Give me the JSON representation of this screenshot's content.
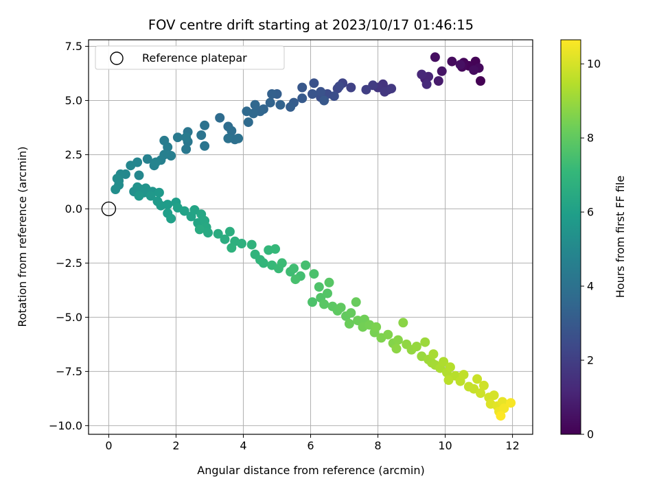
{
  "chart_data": {
    "type": "scatter",
    "title": "FOV centre drift starting at 2023/10/17 01:46:15",
    "xlabel": "Angular distance from reference (arcmin)",
    "ylabel": "Rotation from reference (arcmin)",
    "xlim": [
      -0.6,
      12.6
    ],
    "ylim": [
      -10.4,
      7.8
    ],
    "x_ticks": [
      0,
      2,
      4,
      6,
      8,
      10,
      12
    ],
    "x_tick_labels": [
      "0",
      "2",
      "4",
      "6",
      "8",
      "10",
      "12"
    ],
    "y_ticks": [
      -10.0,
      -7.5,
      -5.0,
      -2.5,
      0.0,
      2.5,
      5.0,
      7.5
    ],
    "y_tick_labels": [
      "−10.0",
      "−7.5",
      "−5.0",
      "−2.5",
      "0.0",
      "2.5",
      "5.0",
      "7.5"
    ],
    "grid": true,
    "legend": {
      "placement": "top-left",
      "entries": [
        "Reference platepar"
      ]
    },
    "reference_point": {
      "x": 0.0,
      "y": 0.0
    },
    "colorbar": {
      "label": "Hours from first FF file",
      "colormap": "viridis",
      "range": [
        0,
        10.65
      ],
      "ticks": [
        0,
        2,
        4,
        6,
        8,
        10
      ],
      "tick_labels": [
        "0",
        "2",
        "4",
        "6",
        "8",
        "10"
      ]
    },
    "color_stops": [
      "#440154",
      "#482878",
      "#3e4989",
      "#31688e",
      "#26828e",
      "#1f9e89",
      "#35b779",
      "#6ece58",
      "#b5de2b",
      "#fde725"
    ],
    "series": [
      {
        "points": [
          [
            11.05,
            5.9,
            0.0
          ],
          [
            10.9,
            6.8,
            0.05
          ],
          [
            10.7,
            6.6,
            0.1
          ],
          [
            10.55,
            6.75,
            0.15
          ],
          [
            10.5,
            6.55,
            0.2
          ],
          [
            11.0,
            6.5,
            0.25
          ],
          [
            10.2,
            6.8,
            0.3
          ],
          [
            10.85,
            6.4,
            0.35
          ],
          [
            9.7,
            7.0,
            0.4
          ],
          [
            10.45,
            6.65,
            0.45
          ],
          [
            9.9,
            6.35,
            0.6
          ],
          [
            9.8,
            5.9,
            0.8
          ],
          [
            9.4,
            6.0,
            1.0
          ],
          [
            9.5,
            6.1,
            1.1
          ],
          [
            9.3,
            6.2,
            1.2
          ],
          [
            9.45,
            5.75,
            1.3
          ],
          [
            8.3,
            5.5,
            1.5
          ],
          [
            8.15,
            5.75,
            1.6
          ],
          [
            8.0,
            5.6,
            1.7
          ],
          [
            8.2,
            5.4,
            1.75
          ],
          [
            8.4,
            5.55,
            1.8
          ],
          [
            7.85,
            5.7,
            1.9
          ],
          [
            7.65,
            5.5,
            2.0
          ],
          [
            7.2,
            5.6,
            2.1
          ],
          [
            6.95,
            5.8,
            2.2
          ],
          [
            6.8,
            5.55,
            2.3
          ],
          [
            6.85,
            5.65,
            2.4
          ],
          [
            6.5,
            5.3,
            2.5
          ],
          [
            6.7,
            5.2,
            2.55
          ],
          [
            6.3,
            5.15,
            2.6
          ],
          [
            6.1,
            5.8,
            2.7
          ],
          [
            6.3,
            5.4,
            2.75
          ],
          [
            6.05,
            5.3,
            2.8
          ],
          [
            5.75,
            5.6,
            2.9
          ],
          [
            6.4,
            5.0,
            2.95
          ],
          [
            5.75,
            5.1,
            3.0
          ],
          [
            5.5,
            4.9,
            3.1
          ],
          [
            5.4,
            4.7,
            3.15
          ],
          [
            5.0,
            5.3,
            3.2
          ],
          [
            4.85,
            5.3,
            3.3
          ],
          [
            5.1,
            4.8,
            3.35
          ],
          [
            4.8,
            4.9,
            3.4
          ],
          [
            4.6,
            4.6,
            3.45
          ],
          [
            4.5,
            4.5,
            3.5
          ],
          [
            4.35,
            4.8,
            3.55
          ],
          [
            4.3,
            4.4,
            3.6
          ],
          [
            4.1,
            4.5,
            3.65
          ],
          [
            4.15,
            4.0,
            3.7
          ],
          [
            3.3,
            4.2,
            3.75
          ],
          [
            3.55,
            3.8,
            3.8
          ],
          [
            3.65,
            3.6,
            3.85
          ],
          [
            3.75,
            3.2,
            3.9
          ],
          [
            3.85,
            3.25,
            3.95
          ],
          [
            3.55,
            3.25,
            4.0
          ],
          [
            2.85,
            3.85,
            4.05
          ],
          [
            2.75,
            3.4,
            4.1
          ],
          [
            2.85,
            2.9,
            4.15
          ],
          [
            2.35,
            3.55,
            4.2
          ],
          [
            2.35,
            3.1,
            4.25
          ],
          [
            2.3,
            2.75,
            4.3
          ],
          [
            2.05,
            3.3,
            4.35
          ],
          [
            2.3,
            3.3,
            4.4
          ],
          [
            1.65,
            3.15,
            4.45
          ],
          [
            1.75,
            2.85,
            4.5
          ],
          [
            1.85,
            2.45,
            4.55
          ],
          [
            1.65,
            2.5,
            4.6
          ],
          [
            1.55,
            2.25,
            4.65
          ],
          [
            1.15,
            2.3,
            4.7
          ],
          [
            1.35,
            2.0,
            4.75
          ],
          [
            1.4,
            2.15,
            4.8
          ],
          [
            0.85,
            2.15,
            4.85
          ],
          [
            0.65,
            2.0,
            4.9
          ],
          [
            0.9,
            1.55,
            4.95
          ],
          [
            0.5,
            1.6,
            5.0
          ],
          [
            0.35,
            1.6,
            5.05
          ],
          [
            0.3,
            1.3,
            5.1
          ],
          [
            0.25,
            1.4,
            5.15
          ],
          [
            0.3,
            1.1,
            5.2
          ],
          [
            0.2,
            0.9,
            5.25
          ],
          [
            0.75,
            0.8,
            5.3
          ],
          [
            0.95,
            0.9,
            5.35
          ],
          [
            0.85,
            1.0,
            5.4
          ],
          [
            1.1,
            0.95,
            5.45
          ],
          [
            1.05,
            0.75,
            5.5
          ],
          [
            1.3,
            0.8,
            5.55
          ],
          [
            0.9,
            0.6,
            5.6
          ],
          [
            1.25,
            0.6,
            5.65
          ],
          [
            1.5,
            0.75,
            5.7
          ],
          [
            1.45,
            0.35,
            5.75
          ],
          [
            1.55,
            0.15,
            5.8
          ],
          [
            1.75,
            0.2,
            5.85
          ],
          [
            2.0,
            0.3,
            5.9
          ],
          [
            1.75,
            -0.2,
            5.95
          ],
          [
            1.85,
            -0.45,
            6.0
          ],
          [
            2.05,
            0.05,
            6.05
          ],
          [
            2.25,
            -0.1,
            6.1
          ],
          [
            2.45,
            -0.35,
            6.15
          ],
          [
            2.55,
            -0.05,
            6.2
          ],
          [
            2.65,
            -0.65,
            6.25
          ],
          [
            2.75,
            -0.25,
            6.3
          ],
          [
            2.85,
            -0.55,
            6.35
          ],
          [
            2.9,
            -0.85,
            6.4
          ],
          [
            2.95,
            -1.1,
            6.45
          ],
          [
            2.7,
            -0.95,
            6.5
          ],
          [
            3.25,
            -1.15,
            6.55
          ],
          [
            3.45,
            -1.4,
            6.6
          ],
          [
            3.6,
            -1.05,
            6.65
          ],
          [
            3.75,
            -1.5,
            6.7
          ],
          [
            3.95,
            -1.6,
            6.75
          ],
          [
            3.65,
            -1.8,
            6.8
          ],
          [
            4.25,
            -1.65,
            6.85
          ],
          [
            4.35,
            -2.1,
            6.9
          ],
          [
            4.5,
            -2.35,
            6.95
          ],
          [
            4.6,
            -2.5,
            7.0
          ],
          [
            4.75,
            -1.9,
            7.05
          ],
          [
            4.95,
            -1.85,
            7.1
          ],
          [
            4.85,
            -2.6,
            7.15
          ],
          [
            5.05,
            -2.75,
            7.2
          ],
          [
            5.15,
            -2.5,
            7.25
          ],
          [
            5.4,
            -2.9,
            7.3
          ],
          [
            5.5,
            -2.75,
            7.35
          ],
          [
            5.7,
            -3.1,
            7.4
          ],
          [
            5.85,
            -2.6,
            7.45
          ],
          [
            5.55,
            -3.25,
            7.5
          ],
          [
            6.1,
            -3.0,
            7.55
          ],
          [
            6.05,
            -4.3,
            7.6
          ],
          [
            6.25,
            -3.6,
            7.65
          ],
          [
            6.3,
            -4.1,
            7.7
          ],
          [
            6.5,
            -3.9,
            7.75
          ],
          [
            6.55,
            -3.4,
            7.8
          ],
          [
            6.4,
            -4.4,
            7.85
          ],
          [
            6.65,
            -4.5,
            7.9
          ],
          [
            6.8,
            -4.7,
            7.95
          ],
          [
            6.9,
            -4.55,
            8.0
          ],
          [
            7.05,
            -4.95,
            8.05
          ],
          [
            7.2,
            -4.8,
            8.1
          ],
          [
            7.35,
            -4.3,
            8.15
          ],
          [
            7.15,
            -5.3,
            8.2
          ],
          [
            7.4,
            -5.15,
            8.25
          ],
          [
            7.6,
            -5.1,
            8.3
          ],
          [
            7.55,
            -5.45,
            8.35
          ],
          [
            7.75,
            -5.35,
            8.4
          ],
          [
            7.9,
            -5.7,
            8.45
          ],
          [
            7.95,
            -5.45,
            8.5
          ],
          [
            8.1,
            -5.95,
            8.55
          ],
          [
            8.3,
            -5.8,
            8.6
          ],
          [
            8.45,
            -6.2,
            8.65
          ],
          [
            8.6,
            -6.05,
            8.7
          ],
          [
            8.75,
            -5.25,
            8.75
          ],
          [
            8.55,
            -6.45,
            8.8
          ],
          [
            8.85,
            -6.25,
            8.85
          ],
          [
            9.0,
            -6.5,
            8.9
          ],
          [
            9.15,
            -6.35,
            8.95
          ],
          [
            9.3,
            -6.8,
            9.0
          ],
          [
            9.4,
            -6.15,
            9.05
          ],
          [
            9.5,
            -6.95,
            9.1
          ],
          [
            9.6,
            -7.1,
            9.15
          ],
          [
            9.7,
            -7.2,
            9.2
          ],
          [
            9.65,
            -6.7,
            9.25
          ],
          [
            9.85,
            -7.35,
            9.3
          ],
          [
            9.95,
            -7.05,
            9.35
          ],
          [
            10.05,
            -7.55,
            9.4
          ],
          [
            10.15,
            -7.3,
            9.45
          ],
          [
            10.3,
            -7.7,
            9.5
          ],
          [
            10.1,
            -7.9,
            9.55
          ],
          [
            10.45,
            -7.95,
            9.6
          ],
          [
            10.55,
            -7.65,
            9.65
          ],
          [
            10.7,
            -8.2,
            9.7
          ],
          [
            10.85,
            -8.3,
            9.75
          ],
          [
            10.95,
            -7.85,
            9.8
          ],
          [
            11.05,
            -8.5,
            9.85
          ],
          [
            11.15,
            -8.15,
            9.9
          ],
          [
            11.3,
            -8.7,
            9.95
          ],
          [
            11.45,
            -8.6,
            10.0
          ],
          [
            11.35,
            -9.0,
            10.1
          ],
          [
            11.55,
            -9.1,
            10.2
          ],
          [
            11.7,
            -8.9,
            10.3
          ],
          [
            11.6,
            -9.35,
            10.4
          ],
          [
            11.75,
            -9.2,
            10.5
          ],
          [
            11.95,
            -8.95,
            10.55
          ],
          [
            11.65,
            -9.55,
            10.65
          ]
        ]
      }
    ]
  }
}
